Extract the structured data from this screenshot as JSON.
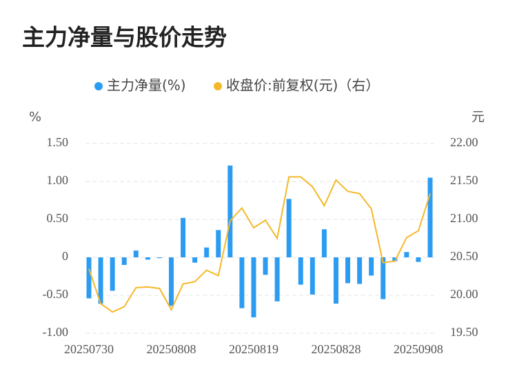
{
  "chart_data": {
    "type": "bar-line",
    "title": "主力净量与股价走势",
    "y_unit": "%",
    "y2_unit": "元",
    "categories": [
      "20250730",
      null,
      null,
      null,
      null,
      null,
      null,
      "20250808",
      null,
      null,
      null,
      null,
      null,
      null,
      "20250819",
      null,
      null,
      null,
      null,
      null,
      null,
      "20250828",
      null,
      null,
      null,
      null,
      null,
      null,
      "20250908",
      null
    ],
    "series": [
      {
        "name": "主力净量(%)",
        "type": "bar",
        "color": "#2b9cf2",
        "values": [
          -0.54,
          -0.61,
          -0.44,
          -0.1,
          0.09,
          -0.03,
          -0.01,
          -0.64,
          0.52,
          -0.07,
          0.13,
          0.36,
          1.21,
          -0.67,
          -0.79,
          -0.23,
          -0.58,
          0.77,
          -0.36,
          -0.49,
          0.37,
          -0.61,
          -0.34,
          -0.35,
          -0.24,
          -0.55,
          -0.05,
          0.07,
          -0.06,
          1.05
        ]
      },
      {
        "name": "收盘价:前复权(元)（右）",
        "type": "line",
        "axis": "y2",
        "color": "#f5b829",
        "values": [
          20.35,
          19.89,
          19.78,
          19.85,
          20.1,
          20.11,
          20.09,
          19.81,
          20.15,
          20.18,
          20.33,
          20.26,
          20.98,
          21.15,
          20.89,
          20.99,
          20.75,
          21.56,
          21.56,
          21.43,
          21.18,
          21.52,
          21.37,
          21.34,
          21.14,
          20.43,
          20.45,
          20.76,
          20.85,
          21.34
        ]
      }
    ],
    "ylim": [
      -1.0,
      1.5
    ],
    "yticks": [
      {
        "value": -1.0,
        "label": "-1.00"
      },
      {
        "value": -0.5,
        "label": "-0.50"
      },
      0,
      {
        "value": 0.5,
        "label": "0.50"
      },
      {
        "value": 1.0,
        "label": "1.00"
      },
      {
        "value": 1.5,
        "label": "1.50"
      }
    ],
    "y2lim": [
      19.5,
      22.0
    ],
    "y2ticks": [
      {
        "value": 19.5,
        "label": "19.50"
      },
      {
        "value": 20.0,
        "label": "20.00"
      },
      {
        "value": 20.5,
        "label": "20.50"
      },
      {
        "value": 21.0,
        "label": "21.00"
      },
      {
        "value": 21.5,
        "label": "21.50"
      },
      {
        "value": 22.0,
        "label": "22.00"
      }
    ],
    "grid": true,
    "legend": "top"
  }
}
